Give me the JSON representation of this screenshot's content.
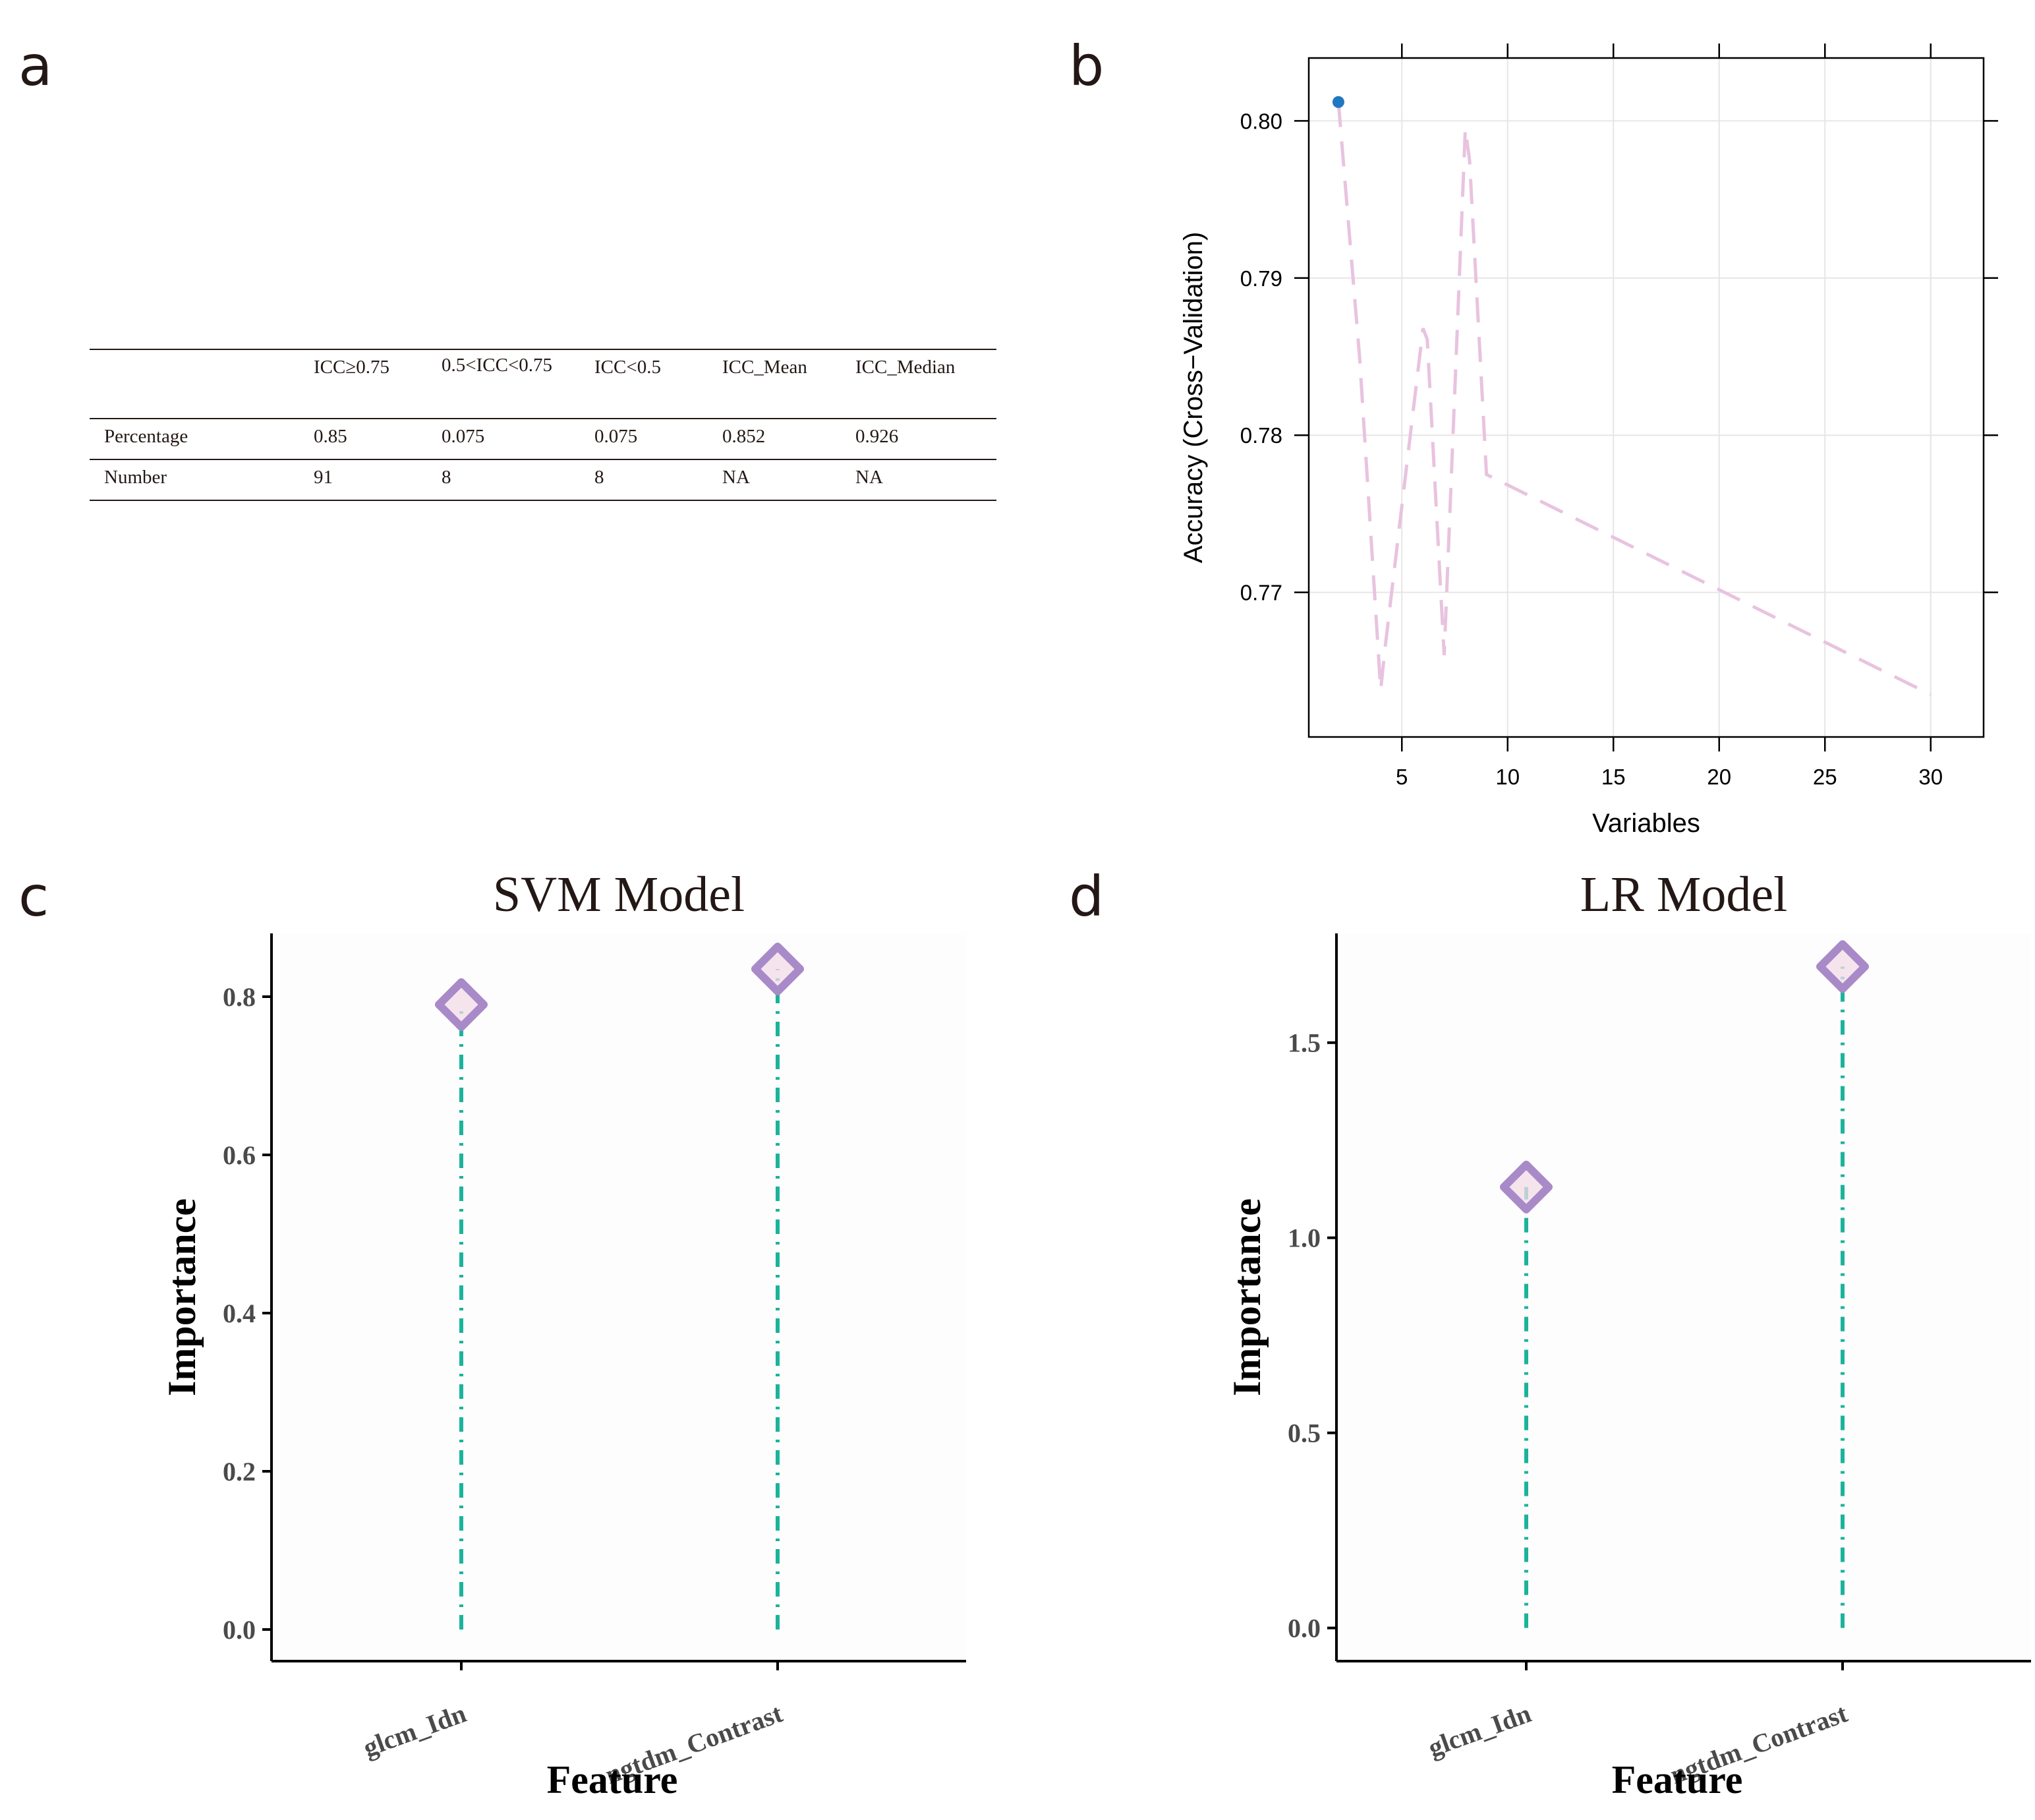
{
  "panels": {
    "a": {
      "label": "a",
      "table": {
        "headers": [
          "",
          "ICC≥0.75",
          "0.5<ICC<0.75",
          "ICC<0.5",
          "ICC_Mean",
          "ICC_Median"
        ],
        "rows": [
          [
            "Percentage",
            "0.85",
            "0.075",
            "0.075",
            "0.852",
            "0.926"
          ],
          [
            "Number",
            "91",
            "8",
            "8",
            "NA",
            "NA"
          ]
        ]
      }
    },
    "b": {
      "label": "b",
      "chart_data": {
        "type": "line",
        "xlabel": "Variables",
        "ylabel": "Accuracy (Cross−Validation)",
        "x_ticks": [
          5,
          10,
          15,
          20,
          25,
          30
        ],
        "y_ticks": [
          0.77,
          0.78,
          0.79,
          0.8
        ],
        "xlim": [
          0.6,
          32.5
        ],
        "ylim": [
          0.7608,
          0.804
        ],
        "grid": true,
        "series": [
          {
            "name": "accuracy",
            "x": [
              2,
              3,
              4,
              4.2,
              5,
              6,
              6.2,
              7,
              8,
              8.2,
              9,
              30
            ],
            "y": [
              0.8012,
              0.785,
              0.7638,
              0.7664,
              0.7755,
              0.7868,
              0.7861,
              0.766,
              0.7995,
              0.7975,
              0.7775,
              0.7635
            ],
            "color": "#e8c3df",
            "style": "dashed"
          }
        ],
        "highlight_point": {
          "x": 2,
          "y": 0.8012,
          "color": "#1f78c0"
        }
      }
    },
    "c": {
      "label": "c",
      "chart_data": {
        "type": "lollipop",
        "title": "SVM Model",
        "xlabel": "Feature",
        "ylabel": "Importance",
        "categories": [
          "glcm_Idn",
          "ngtdm_Contrast"
        ],
        "values": [
          0.79,
          0.835
        ],
        "ylim": [
          -0.04,
          0.88
        ],
        "y_ticks": [
          0.0,
          0.2,
          0.4,
          0.6,
          0.8
        ],
        "y_tick_labels": [
          "0.0",
          "0.2",
          "0.4",
          "0.6",
          "0.8"
        ],
        "stem_color": "#1bb39b",
        "marker_edge_color": "#a98ac8",
        "marker_fill_color": "#f3dbe7"
      }
    },
    "d": {
      "label": "d",
      "chart_data": {
        "type": "lollipop",
        "title": "LR Model",
        "xlabel": "Feature",
        "ylabel": "Importance",
        "categories": [
          "glcm_Idn",
          "ngtdm_Contrast"
        ],
        "values": [
          1.13,
          1.695
        ],
        "ylim": [
          -0.085,
          1.78
        ],
        "y_ticks": [
          0.0,
          0.5,
          1.0,
          1.5
        ],
        "y_tick_labels": [
          "0.0",
          "0.5",
          "1.0",
          "1.5"
        ],
        "stem_color": "#1bb39b",
        "marker_edge_color": "#a98ac8",
        "marker_fill_color": "#f3dbe7"
      }
    }
  }
}
